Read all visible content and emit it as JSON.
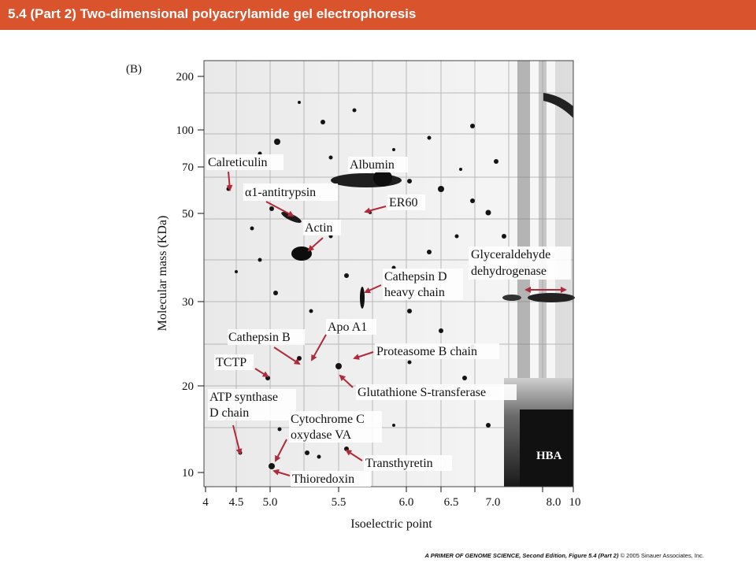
{
  "title": "5.4 (Part 2)  Two-dimensional polyacrylamide gel electrophoresis",
  "panel_label": "(B)",
  "y_axis": {
    "label": "Molecular mass (KDa)",
    "ticks": [
      "200",
      "100",
      "70",
      "50",
      "30",
      "20",
      "10"
    ]
  },
  "x_axis": {
    "label": "Isoelectric point",
    "ticks": [
      "4",
      "4.5",
      "5.0",
      "5.5",
      "6.0",
      "6.5",
      "7.0",
      "8.0",
      "10"
    ]
  },
  "proteins": {
    "calreticulin": "Calreticulin",
    "albumin": "Albumin",
    "antitrypsin": "α1-antitrypsin",
    "er60": "ER60",
    "actin": "Actin",
    "gapdh_1": "Glyceraldehyde",
    "gapdh_2": "dehydrogenase",
    "cathepsin_d_1": "Cathepsin D",
    "cathepsin_d_2": "heavy chain",
    "apo_a1": "Apo A1",
    "cathepsin_b": "Cathepsin B",
    "proteasome": "Proteasome B chain",
    "tctp": "TCTP",
    "gst": "Glutathione S-transferase",
    "atp_1": "ATP synthase",
    "atp_2": "D chain",
    "cyto_1": "Cytochrome C",
    "cyto_2": "oxydase VA",
    "transthyretin": "Transthyretin",
    "thioredoxin": "Thioredoxin",
    "hba": "HBA"
  },
  "footer": {
    "book": "A PRIMER OF GENOME SCIENCE, Second Edition, Figure 5.4 (Part 2)",
    "copyright": " © 2005 Sinauer Associates, Inc."
  },
  "colors": {
    "title_bar": "#d9532c",
    "arrow": "#b02a3a"
  }
}
